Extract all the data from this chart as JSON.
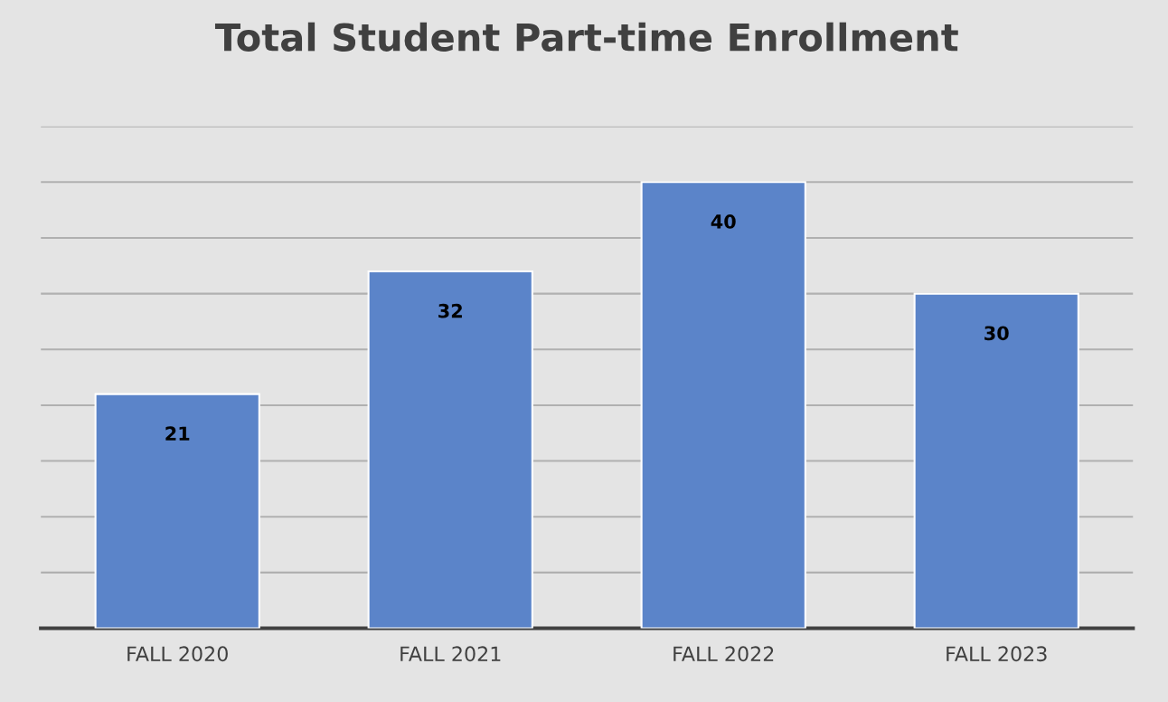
{
  "chart_data": {
    "type": "bar",
    "title": "Total Student Part-time Enrollment",
    "categories": [
      "FALL 2020",
      "FALL 2021",
      "FALL 2022",
      "FALL 2023"
    ],
    "values": [
      21,
      32,
      40,
      30
    ],
    "color": "#5b84c9",
    "ylim": [
      0,
      45
    ],
    "yticks": [
      {
        "value": 0,
        "label": null
      },
      {
        "value": 5,
        "label": null
      },
      {
        "value": 10,
        "label": null
      },
      {
        "value": 15,
        "label": null
      },
      {
        "value": 20,
        "label": null
      },
      {
        "value": 25,
        "label": null
      },
      {
        "value": 30,
        "label": null
      },
      {
        "value": 35,
        "label": null
      },
      {
        "value": 40,
        "label": null
      },
      {
        "value": 45,
        "label": null
      }
    ],
    "grid": "y",
    "tick_labels": "x",
    "data_labels": true
  }
}
